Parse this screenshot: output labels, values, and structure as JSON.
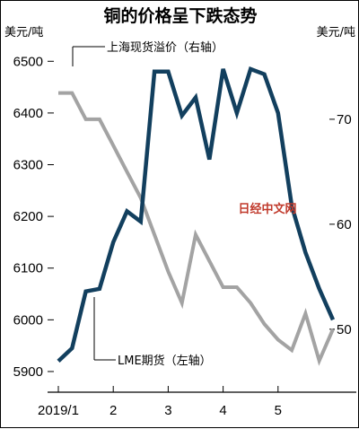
{
  "chart_data": {
    "type": "line",
    "title": "铜的价格呈下跌态势",
    "left_unit": "美元/吨",
    "right_unit": "美元/吨",
    "x_tick_labels": [
      "2019/1",
      "2",
      "3",
      "4",
      "5"
    ],
    "x_tick_positions": [
      0,
      1,
      2,
      3,
      4
    ],
    "xlim": [
      0,
      5.0
    ],
    "left_axis": {
      "ylim": [
        5860,
        6530
      ],
      "ticks": [
        5900,
        6000,
        6100,
        6200,
        6300,
        6400,
        6500
      ]
    },
    "right_axis": {
      "ylim": [
        44,
        77
      ],
      "ticks": [
        50,
        60,
        70
      ]
    },
    "series": [
      {
        "name": "LME期货（左轴）",
        "axis": "left",
        "color": "#123f5e",
        "x": [
          0,
          0.25,
          0.5,
          0.75,
          1.0,
          1.25,
          1.5,
          1.75,
          2.0,
          2.25,
          2.5,
          2.75,
          3.0,
          3.25,
          3.5,
          3.75,
          4.0,
          4.25,
          4.5,
          4.75,
          5.0
        ],
        "y": [
          5920,
          5945,
          6055,
          6060,
          6150,
          6210,
          6190,
          6480,
          6480,
          6395,
          6430,
          6310,
          6485,
          6400,
          6485,
          6475,
          6400,
          6220,
          6130,
          6060,
          6000
        ]
      },
      {
        "name": "上海现货溢价（右轴）",
        "axis": "right",
        "color": "#a3a3a3",
        "x": [
          0,
          0.25,
          0.5,
          0.75,
          1.0,
          1.25,
          1.5,
          1.75,
          2.0,
          2.25,
          2.5,
          2.75,
          3.0,
          3.25,
          3.5,
          3.75,
          4.0,
          4.25,
          4.5,
          4.75,
          5.0
        ],
        "y": [
          72.5,
          72.5,
          70,
          70,
          67.5,
          65,
          62.5,
          59,
          55.5,
          52.5,
          59,
          56.5,
          54,
          54,
          52.5,
          50.5,
          49,
          48,
          51.5,
          47,
          50
        ]
      }
    ],
    "watermark": "日经中文网"
  }
}
